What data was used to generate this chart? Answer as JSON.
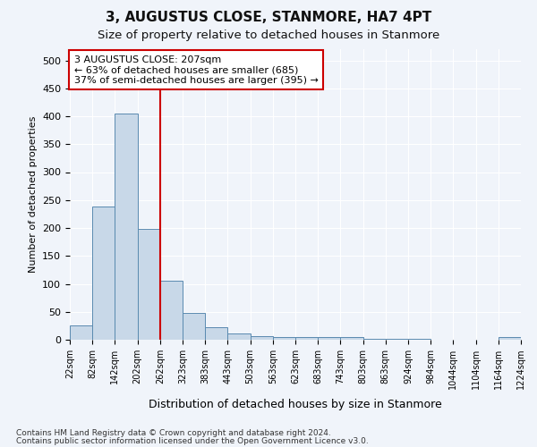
{
  "title": "3, AUGUSTUS CLOSE, STANMORE, HA7 4PT",
  "subtitle": "Size of property relative to detached houses in Stanmore",
  "xlabel": "Distribution of detached houses by size in Stanmore",
  "ylabel": "Number of detached properties",
  "footnote1": "Contains HM Land Registry data © Crown copyright and database right 2024.",
  "footnote2": "Contains public sector information licensed under the Open Government Licence v3.0.",
  "bar_color": "#c8d8e8",
  "bar_edge_color": "#5a8ab0",
  "background_color": "#f0f4fa",
  "grid_color": "#ffffff",
  "vline_color": "#cc0000",
  "annotation_text": "3 AUGUSTUS CLOSE: 207sqm\n← 63% of detached houses are smaller (685)\n37% of semi-detached houses are larger (395) →",
  "tick_labels": [
    "22sqm",
    "82sqm",
    "142sqm",
    "202sqm",
    "262sqm",
    "323sqm",
    "383sqm",
    "443sqm",
    "503sqm",
    "563sqm",
    "623sqm",
    "683sqm",
    "743sqm",
    "803sqm",
    "863sqm",
    "924sqm",
    "984sqm",
    "1044sqm",
    "1104sqm",
    "1164sqm",
    "1224sqm"
  ],
  "bar_values": [
    25,
    238,
    405,
    199,
    105,
    48,
    23,
    12,
    7,
    5,
    5,
    5,
    5,
    2,
    2,
    2,
    0,
    0,
    0,
    5
  ],
  "ylim": [
    0,
    520
  ],
  "yticks": [
    0,
    50,
    100,
    150,
    200,
    250,
    300,
    350,
    400,
    450,
    500
  ]
}
